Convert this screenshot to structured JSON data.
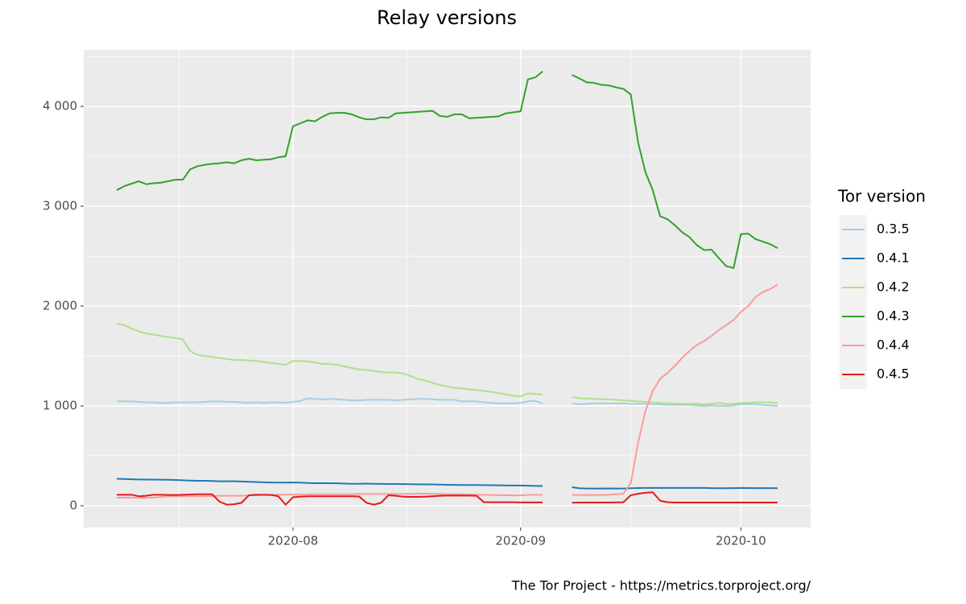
{
  "chart_data": {
    "type": "line",
    "title": "Relay versions",
    "legend_title": "Tor version",
    "caption": "The Tor Project - https://metrics.torproject.org/",
    "categories": [
      null,
      null,
      null,
      null,
      null,
      null,
      null,
      null,
      null,
      null,
      null,
      null,
      null,
      null,
      null,
      null,
      null,
      null,
      null,
      null,
      null,
      null,
      null,
      null,
      "2020-08",
      null,
      null,
      null,
      null,
      null,
      null,
      null,
      null,
      null,
      null,
      null,
      null,
      null,
      null,
      null,
      null,
      null,
      null,
      null,
      null,
      null,
      null,
      null,
      null,
      null,
      null,
      null,
      null,
      null,
      null,
      "2020-09",
      null,
      null,
      null,
      null,
      null,
      null,
      null,
      null,
      null,
      null,
      null,
      null,
      null,
      null,
      null,
      null,
      null,
      null,
      null,
      null,
      null,
      null,
      null,
      null,
      null,
      null,
      null,
      null,
      null,
      "2020-10",
      null,
      null,
      null,
      null,
      null
    ],
    "ylim": [
      -218,
      4565
    ],
    "yticks": [
      0,
      {
        "value": 1000,
        "label": "1 000"
      },
      {
        "value": 2000,
        "label": "2 000"
      },
      {
        "value": 3000,
        "label": "3 000"
      },
      {
        "value": 4000,
        "label": "4 000"
      }
    ],
    "grid": true,
    "legend_position": "right",
    "series": [
      {
        "name": "0.3.5",
        "color": "#a6cee3",
        "values": [
          1045,
          1045,
          1045,
          1040,
          1035,
          1035,
          1030,
          1030,
          1035,
          1035,
          1035,
          1035,
          1040,
          1045,
          1045,
          1040,
          1040,
          1035,
          1030,
          1035,
          1030,
          1035,
          1035,
          1030,
          1040,
          1050,
          1075,
          1070,
          1065,
          1070,
          1065,
          1060,
          1055,
          1055,
          1060,
          1060,
          1060,
          1060,
          1055,
          1060,
          1065,
          1070,
          1070,
          1065,
          1060,
          1060,
          1060,
          1045,
          1045,
          1045,
          1035,
          1030,
          1025,
          1025,
          1025,
          1030,
          1045,
          1050,
          1025,
          null,
          null,
          null,
          1025,
          1015,
          1020,
          1025,
          1025,
          1025,
          1025,
          1025,
          1020,
          1020,
          1020,
          1015,
          1015,
          1010,
          1010,
          1010,
          1010,
          1005,
          1000,
          1005,
          1000,
          1000,
          1005,
          1015,
          1015,
          1015,
          1010,
          1005,
          1000
        ]
      },
      {
        "name": "0.4.1",
        "color": "#1f78b4",
        "values": [
          270,
          268,
          265,
          263,
          262,
          262,
          261,
          260,
          258,
          255,
          252,
          250,
          250,
          248,
          245,
          245,
          245,
          243,
          240,
          238,
          235,
          233,
          232,
          232,
          233,
          232,
          228,
          226,
          226,
          226,
          225,
          222,
          220,
          220,
          222,
          220,
          219,
          218,
          218,
          217,
          216,
          215,
          214,
          213,
          212,
          210,
          208,
          207,
          207,
          207,
          206,
          205,
          204,
          203,
          202,
          202,
          200,
          198,
          197,
          null,
          null,
          null,
          185,
          175,
          172,
          172,
          172,
          173,
          172,
          172,
          175,
          177,
          178,
          178,
          178,
          178,
          178,
          178,
          178,
          178,
          178,
          176,
          175,
          175,
          176,
          178,
          177,
          176,
          176,
          176,
          175
        ]
      },
      {
        "name": "0.4.2",
        "color": "#b2df8a",
        "values": [
          1825,
          1810,
          1775,
          1745,
          1725,
          1715,
          1700,
          1690,
          1680,
          1665,
          1550,
          1510,
          1500,
          1490,
          1480,
          1470,
          1460,
          1460,
          1455,
          1450,
          1440,
          1430,
          1420,
          1410,
          1450,
          1450,
          1445,
          1435,
          1420,
          1420,
          1410,
          1395,
          1380,
          1365,
          1360,
          1350,
          1340,
          1335,
          1335,
          1325,
          1300,
          1270,
          1255,
          1230,
          1210,
          1195,
          1180,
          1175,
          1165,
          1160,
          1150,
          1140,
          1130,
          1115,
          1100,
          1095,
          1125,
          1120,
          1115,
          null,
          null,
          null,
          1090,
          1075,
          1075,
          1070,
          1065,
          1065,
          1060,
          1055,
          1050,
          1045,
          1040,
          1035,
          1030,
          1025,
          1025,
          1020,
          1020,
          1020,
          1015,
          1020,
          1030,
          1020,
          1020,
          1030,
          1030,
          1035,
          1035,
          1035,
          1030
        ]
      },
      {
        "name": "0.4.3",
        "color": "#33a02c",
        "values": [
          3160,
          3200,
          3225,
          3250,
          3220,
          3230,
          3235,
          3250,
          3265,
          3265,
          3370,
          3400,
          3415,
          3425,
          3430,
          3440,
          3430,
          3460,
          3475,
          3460,
          3465,
          3470,
          3490,
          3500,
          3800,
          3830,
          3860,
          3850,
          3895,
          3930,
          3935,
          3935,
          3920,
          3890,
          3870,
          3870,
          3890,
          3885,
          3930,
          3935,
          3940,
          3945,
          3950,
          3955,
          3905,
          3895,
          3920,
          3920,
          3880,
          3885,
          3890,
          3895,
          3900,
          3930,
          3940,
          3950,
          4270,
          4290,
          4350,
          null,
          null,
          null,
          4315,
          4280,
          4240,
          4235,
          4215,
          4210,
          4190,
          4175,
          4120,
          3640,
          3340,
          3160,
          2900,
          2870,
          2810,
          2740,
          2690,
          2610,
          2560,
          2565,
          2480,
          2400,
          2380,
          2720,
          2725,
          2670,
          2645,
          2620,
          2580
        ]
      },
      {
        "name": "0.4.4",
        "color": "#fb9a99",
        "values": [
          80,
          80,
          82,
          80,
          80,
          82,
          88,
          95,
          95,
          95,
          95,
          95,
          95,
          98,
          100,
          100,
          100,
          100,
          105,
          105,
          110,
          110,
          110,
          112,
          112,
          112,
          115,
          115,
          115,
          115,
          115,
          115,
          115,
          118,
          118,
          118,
          118,
          118,
          118,
          118,
          120,
          120,
          120,
          120,
          118,
          115,
          115,
          115,
          112,
          110,
          110,
          108,
          106,
          105,
          104,
          105,
          108,
          110,
          110,
          null,
          null,
          null,
          110,
          108,
          108,
          108,
          108,
          110,
          115,
          120,
          225,
          630,
          950,
          1150,
          1270,
          1330,
          1400,
          1480,
          1550,
          1610,
          1650,
          1700,
          1760,
          1810,
          1860,
          1940,
          2000,
          2090,
          2140,
          2170,
          2215
        ]
      },
      {
        "name": "0.4.5",
        "color": "#e31a1c",
        "values": [
          110,
          110,
          110,
          95,
          100,
          110,
          110,
          108,
          108,
          110,
          112,
          115,
          115,
          115,
          40,
          10,
          15,
          30,
          105,
          110,
          110,
          108,
          95,
          10,
          85,
          90,
          95,
          95,
          95,
          95,
          95,
          95,
          95,
          93,
          30,
          10,
          30,
          105,
          100,
          90,
          88,
          88,
          90,
          95,
          100,
          102,
          102,
          102,
          102,
          100,
          35,
          35,
          35,
          35,
          35,
          33,
          33,
          33,
          33,
          null,
          null,
          null,
          30,
          32,
          32,
          32,
          32,
          32,
          33,
          35,
          105,
          120,
          130,
          135,
          50,
          35,
          32,
          32,
          32,
          32,
          32,
          32,
          32,
          32,
          32,
          32,
          32,
          32,
          32,
          32,
          32
        ]
      }
    ]
  }
}
